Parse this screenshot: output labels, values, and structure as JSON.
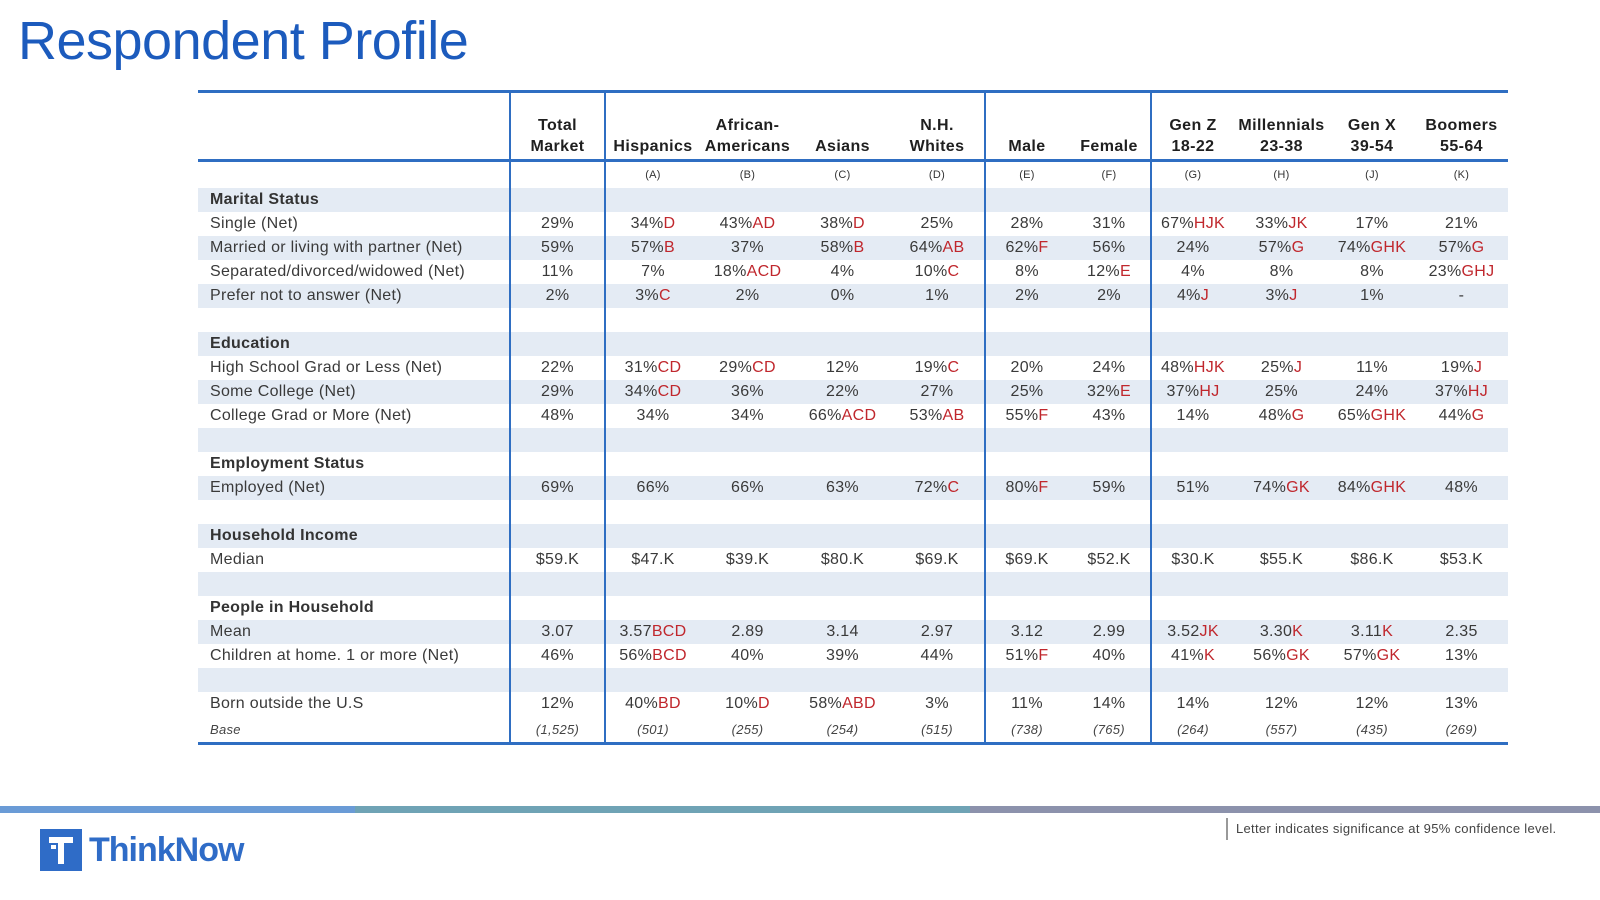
{
  "title": "Respondent Profile",
  "columns": [
    {
      "label": "Total\nMarket",
      "letter": ""
    },
    {
      "label": "Hispanics",
      "letter": "(A)"
    },
    {
      "label": "African-\nAmericans",
      "letter": "(B)"
    },
    {
      "label": "Asians",
      "letter": "(C)"
    },
    {
      "label": "N.H.\nWhites",
      "letter": "(D)"
    },
    {
      "label": "Male",
      "letter": "(E)"
    },
    {
      "label": "Female",
      "letter": "(F)"
    },
    {
      "label": "Gen Z\n18-22",
      "letter": "(G)"
    },
    {
      "label": "Millennials\n23-38",
      "letter": "(H)"
    },
    {
      "label": "Gen X\n39-54",
      "letter": "(J)"
    },
    {
      "label": "Boomers\n55-64",
      "letter": "(K)"
    }
  ],
  "rows": [
    {
      "type": "section",
      "label": "Marital Status",
      "shade": true
    },
    {
      "type": "data",
      "label": "Single (Net)",
      "shade": false,
      "cells": [
        [
          "29%",
          ""
        ],
        [
          "34%",
          "D"
        ],
        [
          "43%",
          "AD"
        ],
        [
          "38%",
          "D"
        ],
        [
          "25%",
          ""
        ],
        [
          "28%",
          ""
        ],
        [
          "31%",
          ""
        ],
        [
          "67%",
          "HJK"
        ],
        [
          "33%",
          "JK"
        ],
        [
          "17%",
          ""
        ],
        [
          "21%",
          ""
        ]
      ]
    },
    {
      "type": "data",
      "label": "Married or living with partner (Net)",
      "shade": true,
      "cells": [
        [
          "59%",
          ""
        ],
        [
          "57%",
          "B"
        ],
        [
          "37%",
          ""
        ],
        [
          "58%",
          "B"
        ],
        [
          "64%",
          "AB"
        ],
        [
          "62%",
          "F"
        ],
        [
          "56%",
          ""
        ],
        [
          "24%",
          ""
        ],
        [
          "57%",
          "G"
        ],
        [
          "74%",
          "GHK"
        ],
        [
          "57%",
          "G"
        ]
      ]
    },
    {
      "type": "data",
      "label": "Separated/divorced/widowed (Net)",
      "shade": false,
      "cells": [
        [
          "11%",
          ""
        ],
        [
          "7%",
          ""
        ],
        [
          "18%",
          "ACD"
        ],
        [
          "4%",
          ""
        ],
        [
          "10%",
          "C"
        ],
        [
          "8%",
          ""
        ],
        [
          "12%",
          "E"
        ],
        [
          "4%",
          ""
        ],
        [
          "8%",
          ""
        ],
        [
          "8%",
          ""
        ],
        [
          "23%",
          "GHJ"
        ]
      ]
    },
    {
      "type": "data",
      "label": "Prefer not to answer (Net)",
      "shade": true,
      "cells": [
        [
          "2%",
          ""
        ],
        [
          "3%",
          "C"
        ],
        [
          "2%",
          ""
        ],
        [
          "0%",
          ""
        ],
        [
          "1%",
          ""
        ],
        [
          "2%",
          ""
        ],
        [
          "2%",
          ""
        ],
        [
          "4%",
          "J"
        ],
        [
          "3%",
          "J"
        ],
        [
          "1%",
          ""
        ],
        [
          "-",
          ""
        ]
      ]
    },
    {
      "type": "spacer",
      "shade": false
    },
    {
      "type": "section",
      "label": "Education",
      "shade": true
    },
    {
      "type": "data",
      "label": "High School Grad or Less (Net)",
      "shade": false,
      "cells": [
        [
          "22%",
          ""
        ],
        [
          "31%",
          "CD"
        ],
        [
          "29%",
          "CD"
        ],
        [
          "12%",
          ""
        ],
        [
          "19%",
          "C"
        ],
        [
          "20%",
          ""
        ],
        [
          "24%",
          ""
        ],
        [
          "48%",
          "HJK"
        ],
        [
          "25%",
          "J"
        ],
        [
          "11%",
          ""
        ],
        [
          "19%",
          "J"
        ]
      ]
    },
    {
      "type": "data",
      "label": "Some College (Net)",
      "shade": true,
      "cells": [
        [
          "29%",
          ""
        ],
        [
          "34%",
          "CD"
        ],
        [
          "36%",
          ""
        ],
        [
          "22%",
          ""
        ],
        [
          "27%",
          ""
        ],
        [
          "25%",
          ""
        ],
        [
          "32%",
          "E"
        ],
        [
          "37%",
          "HJ"
        ],
        [
          "25%",
          ""
        ],
        [
          "24%",
          ""
        ],
        [
          "37%",
          "HJ"
        ]
      ]
    },
    {
      "type": "data",
      "label": "College Grad or More (Net)",
      "shade": false,
      "cells": [
        [
          "48%",
          ""
        ],
        [
          "34%",
          ""
        ],
        [
          "34%",
          ""
        ],
        [
          "66%",
          "ACD"
        ],
        [
          "53%",
          "AB"
        ],
        [
          "55%",
          "F"
        ],
        [
          "43%",
          ""
        ],
        [
          "14%",
          ""
        ],
        [
          "48%",
          "G"
        ],
        [
          "65%",
          "GHK"
        ],
        [
          "44%",
          "G"
        ]
      ]
    },
    {
      "type": "spacer",
      "shade": true
    },
    {
      "type": "section",
      "label": "Employment Status",
      "shade": false
    },
    {
      "type": "data",
      "label": "Employed (Net)",
      "shade": true,
      "cells": [
        [
          "69%",
          ""
        ],
        [
          "66%",
          ""
        ],
        [
          "66%",
          ""
        ],
        [
          "63%",
          ""
        ],
        [
          "72%",
          "C"
        ],
        [
          "80%",
          "F"
        ],
        [
          "59%",
          ""
        ],
        [
          "51%",
          ""
        ],
        [
          "74%",
          "GK"
        ],
        [
          "84%",
          "GHK"
        ],
        [
          "48%",
          ""
        ]
      ]
    },
    {
      "type": "spacer",
      "shade": false
    },
    {
      "type": "section",
      "label": "Household Income",
      "shade": true
    },
    {
      "type": "data",
      "label": "Median",
      "shade": false,
      "cells": [
        [
          "$59.K",
          ""
        ],
        [
          "$47.K",
          ""
        ],
        [
          "$39.K",
          ""
        ],
        [
          "$80.K",
          ""
        ],
        [
          "$69.K",
          ""
        ],
        [
          "$69.K",
          ""
        ],
        [
          "$52.K",
          ""
        ],
        [
          "$30.K",
          ""
        ],
        [
          "$55.K",
          ""
        ],
        [
          "$86.K",
          ""
        ],
        [
          "$53.K",
          ""
        ]
      ]
    },
    {
      "type": "spacer",
      "shade": true
    },
    {
      "type": "section",
      "label": "People in Household",
      "shade": false
    },
    {
      "type": "data",
      "label": "Mean",
      "shade": true,
      "cells": [
        [
          "3.07",
          ""
        ],
        [
          "3.57",
          "BCD"
        ],
        [
          "2.89",
          ""
        ],
        [
          "3.14",
          ""
        ],
        [
          "2.97",
          ""
        ],
        [
          "3.12",
          ""
        ],
        [
          "2.99",
          ""
        ],
        [
          "3.52",
          "JK"
        ],
        [
          "3.30",
          "K"
        ],
        [
          "3.11",
          "K"
        ],
        [
          "2.35",
          ""
        ]
      ]
    },
    {
      "type": "data",
      "label": "Children at home. 1 or more (Net)",
      "shade": false,
      "cells": [
        [
          "46%",
          ""
        ],
        [
          "56%",
          "BCD"
        ],
        [
          "40%",
          ""
        ],
        [
          "39%",
          ""
        ],
        [
          "44%",
          ""
        ],
        [
          "51%",
          "F"
        ],
        [
          "40%",
          ""
        ],
        [
          "41%",
          "K"
        ],
        [
          "56%",
          "GK"
        ],
        [
          "57%",
          "GK"
        ],
        [
          "13%",
          ""
        ]
      ]
    },
    {
      "type": "spacer",
      "shade": true
    },
    {
      "type": "data",
      "label": "Born outside the U.S",
      "shade": false,
      "cells": [
        [
          "12%",
          ""
        ],
        [
          "40%",
          "BD"
        ],
        [
          "10%",
          "D"
        ],
        [
          "58%",
          "ABD"
        ],
        [
          "3%",
          ""
        ],
        [
          "11%",
          ""
        ],
        [
          "14%",
          ""
        ],
        [
          "14%",
          ""
        ],
        [
          "12%",
          ""
        ],
        [
          "12%",
          ""
        ],
        [
          "13%",
          ""
        ]
      ]
    },
    {
      "type": "base",
      "label": "Base",
      "shade": false,
      "cells": [
        [
          "(1,525)",
          ""
        ],
        [
          "(501)",
          ""
        ],
        [
          "(255)",
          ""
        ],
        [
          "(254)",
          ""
        ],
        [
          "(515)",
          ""
        ],
        [
          "(738)",
          ""
        ],
        [
          "(765)",
          ""
        ],
        [
          "(264)",
          ""
        ],
        [
          "(557)",
          ""
        ],
        [
          "(435)",
          ""
        ],
        [
          "(269)",
          ""
        ]
      ]
    }
  ],
  "footnote": "Letter indicates significance at 95% confidence level.",
  "logo_text": "ThinkNow",
  "logo_mark": "T",
  "colors": {
    "accent": "#2f6ec2",
    "title": "#1c5bbd",
    "sig": "#c0272d",
    "shade": "#e4ebf4"
  }
}
